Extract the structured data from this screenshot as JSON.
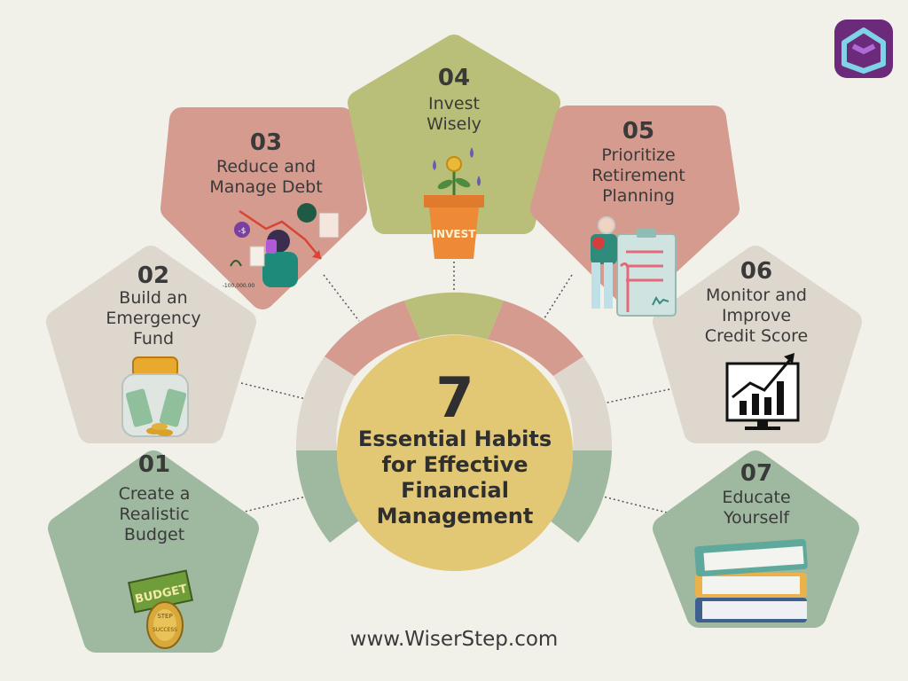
{
  "center": {
    "number": "7",
    "title": "Essential Habits\nfor Effective\nFinancial\nManagement"
  },
  "habits": [
    {
      "number": "01",
      "label": "Create a\nRealistic\nBudget",
      "color": "#9fb8a0"
    },
    {
      "number": "02",
      "label": "Build an\nEmergency\nFund",
      "color": "#ddd7ce"
    },
    {
      "number": "03",
      "label": "Reduce and\nManage Debt",
      "color": "#d49b8e"
    },
    {
      "number": "04",
      "label": "Invest\nWisely",
      "color": "#b9bf78"
    },
    {
      "number": "05",
      "label": "Prioritize\nRetirement\nPlanning",
      "color": "#d49b8e"
    },
    {
      "number": "06",
      "label": "Monitor and\nImprove\nCredit Score",
      "color": "#ddd7ce"
    },
    {
      "number": "07",
      "label": "Educate\nYourself",
      "color": "#9fb8a0"
    }
  ],
  "illustrations": {
    "budget_sign": "BUDGET",
    "coin_top": "STEP",
    "coin_bottom": "SUCCESS",
    "invest_pot": "INVEST",
    "debt_bubble": "-$",
    "debt_amount": "-100,000.00"
  },
  "icons": [
    "budget-coins-icon",
    "money-jar-icon",
    "debt-stress-icon",
    "invest-plant-icon",
    "retirement-checklist-icon",
    "credit-chart-icon",
    "books-stack-icon",
    "wiserstep-logo-icon"
  ],
  "website": "www.WiserStep.com",
  "colors": {
    "background": "#f1f1ea",
    "center": "#e2c875",
    "text": "#3a3a3a",
    "logo": "#6b2a7a"
  }
}
